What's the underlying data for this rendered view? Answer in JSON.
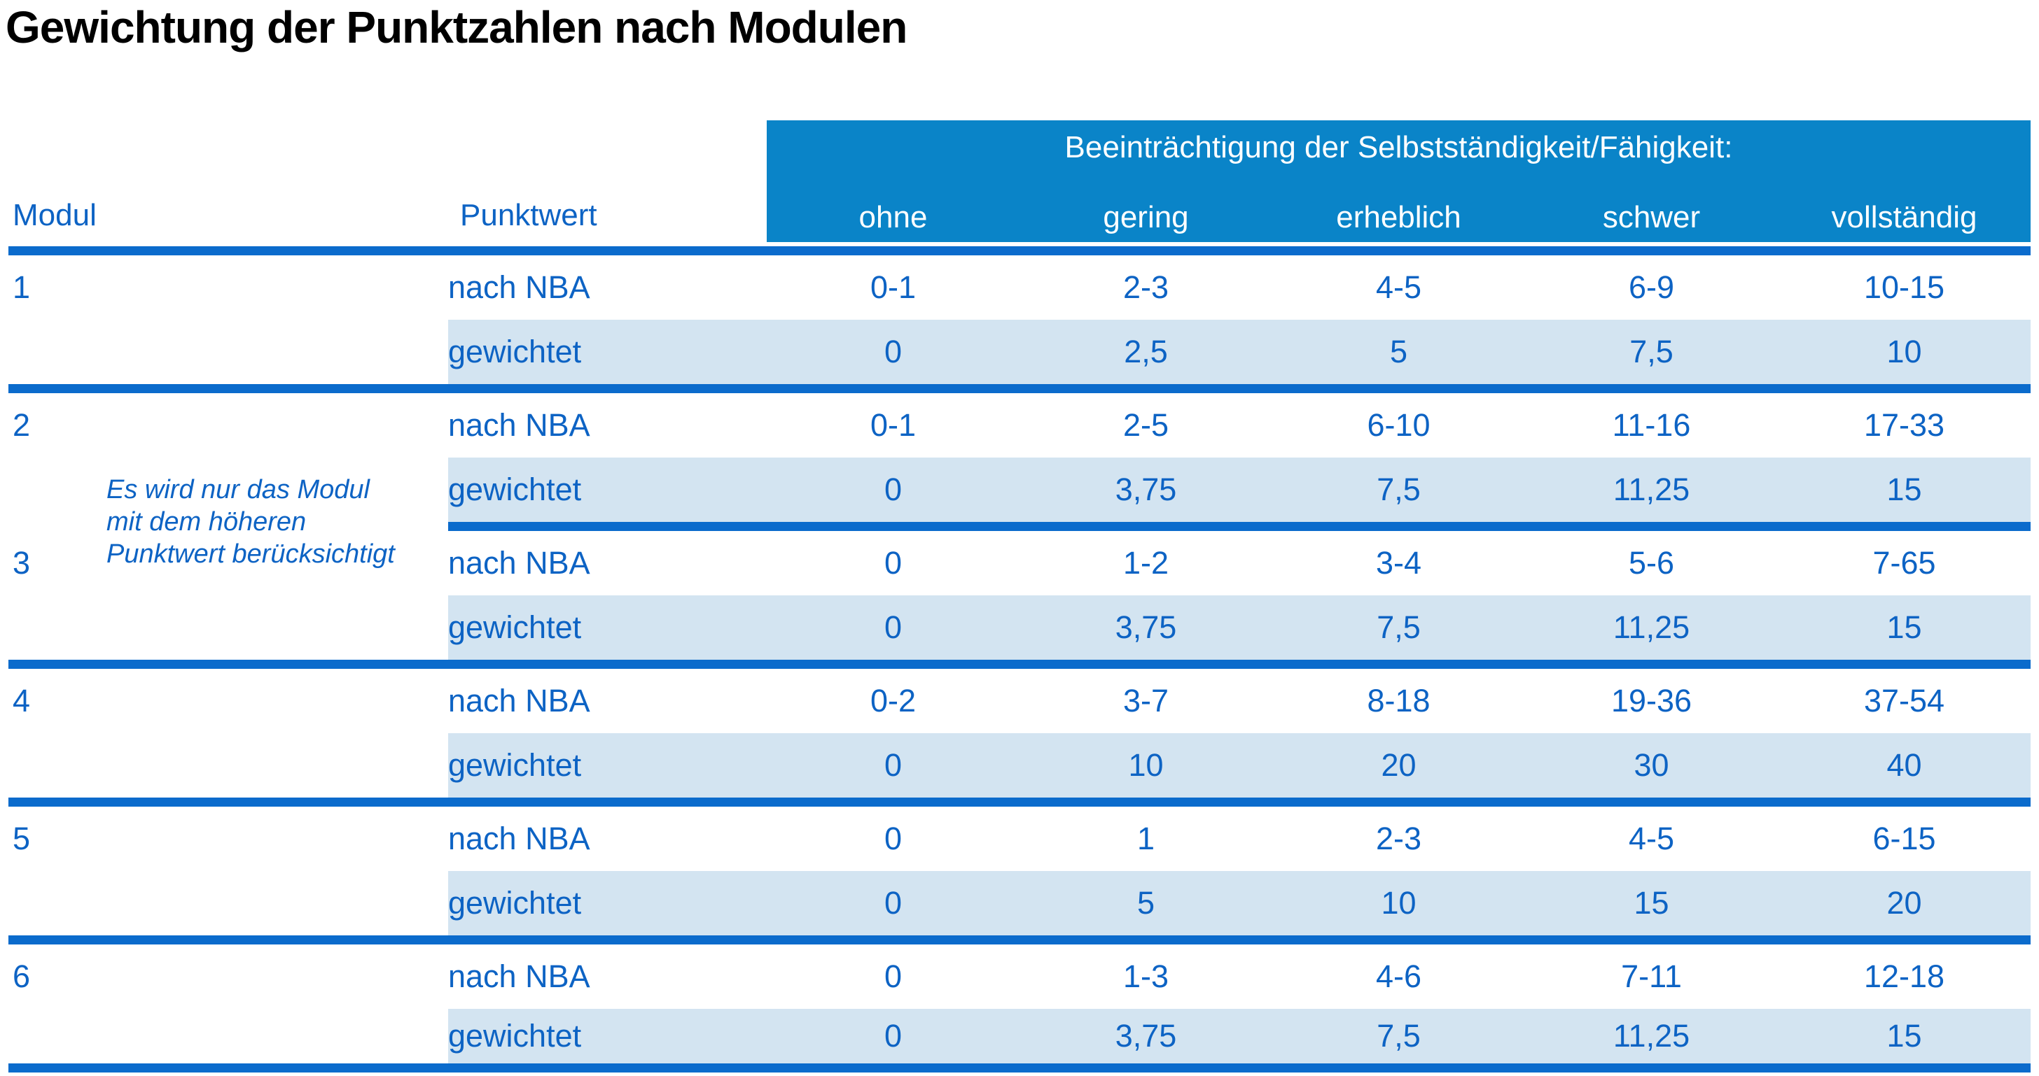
{
  "title": "Gewichtung der Punktzahlen nach Modulen",
  "colors": {
    "banner_background": "#0a84c8",
    "banner_text": "#ffffff",
    "rule_blue": "#0b6bcc",
    "row_shade_blue": "#d3e4f1",
    "text_blue": "#0d63c4",
    "title_text": "#000000"
  },
  "table": {
    "header": {
      "modul": "Modul",
      "punktwert": "Punktwert",
      "banner": "Beeinträchtigung der Selbstständigkeit/Fähigkeit:",
      "severities": [
        "ohne",
        "gering",
        "erheblich",
        "schwer",
        "vollständig"
      ]
    },
    "row_labels": {
      "nach": "nach NBA",
      "gewichtet": "gewichtet"
    },
    "note": {
      "lines": [
        "Es wird nur das Modul",
        "mit dem höheren",
        "Punktwert berücksichtigt"
      ]
    },
    "modules": [
      {
        "id": "1",
        "nach": [
          "0-1",
          "2-3",
          "4-5",
          "6-9",
          "10-15"
        ],
        "gewichtet": [
          "0",
          "2,5",
          "5",
          "7,5",
          "10"
        ]
      },
      {
        "id": "2",
        "nach": [
          "0-1",
          "2-5",
          "6-10",
          "11-16",
          "17-33"
        ],
        "gewichtet": [
          "0",
          "3,75",
          "7,5",
          "11,25",
          "15"
        ]
      },
      {
        "id": "3",
        "nach": [
          "0",
          "1-2",
          "3-4",
          "5-6",
          "7-65"
        ],
        "gewichtet": [
          "0",
          "3,75",
          "7,5",
          "11,25",
          "15"
        ]
      },
      {
        "id": "4",
        "nach": [
          "0-2",
          "3-7",
          "8-18",
          "19-36",
          "37-54"
        ],
        "gewichtet": [
          "0",
          "10",
          "20",
          "30",
          "40"
        ]
      },
      {
        "id": "5",
        "nach": [
          "0",
          "1",
          "2-3",
          "4-5",
          "6-15"
        ],
        "gewichtet": [
          "0",
          "5",
          "10",
          "15",
          "20"
        ]
      },
      {
        "id": "6",
        "nach": [
          "0",
          "1-3",
          "4-6",
          "7-11",
          "12-18"
        ],
        "gewichtet": [
          "0",
          "3,75",
          "7,5",
          "11,25",
          "15"
        ]
      }
    ]
  }
}
